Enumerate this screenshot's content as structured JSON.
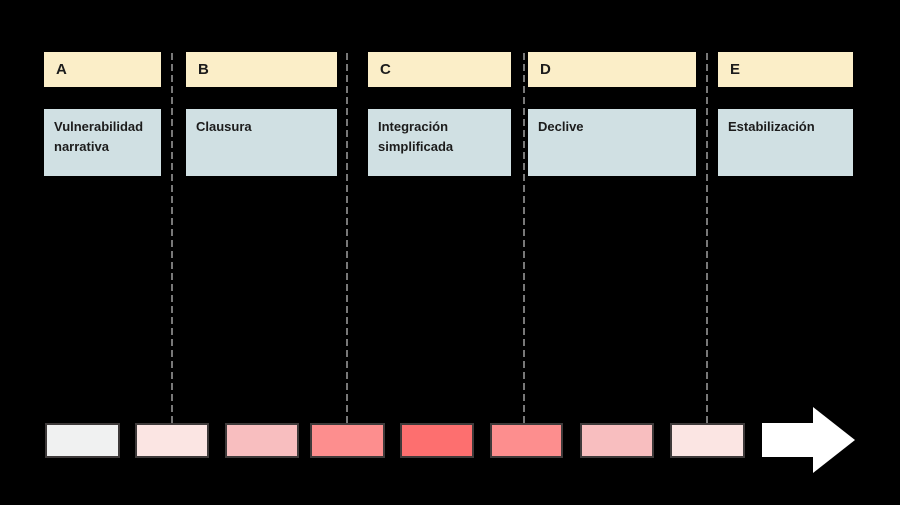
{
  "diagram": {
    "type": "phase-timeline",
    "phases": [
      {
        "letter": "A",
        "label": "Vulnerabilidad narrativa"
      },
      {
        "letter": "B",
        "label": "Clausura"
      },
      {
        "letter": "C",
        "label": "Integración simplificada"
      },
      {
        "letter": "D",
        "label": "Declive"
      },
      {
        "letter": "E",
        "label": "Estabilización"
      }
    ],
    "connectors": {
      "count": 4,
      "style": "dashed-vertical"
    },
    "intensity_bar": {
      "segment_colors": [
        "#F0F1F1",
        "#FBE5E3",
        "#F8BEBF",
        "#FD8E8E",
        "#FD6F6F",
        "#FD8E8E",
        "#F8BEBF",
        "#FBE5E3"
      ],
      "arrow": "right-arrow"
    },
    "colors": {
      "canvas_bg": "#000000",
      "phase_header_bg": "#FBEEC8",
      "phase_label_bg": "#D0E0E3",
      "text": "#1C1C1C",
      "connector": "#787878",
      "segment_border": "#3E3A3A",
      "arrow": "#FFFFFF"
    }
  }
}
